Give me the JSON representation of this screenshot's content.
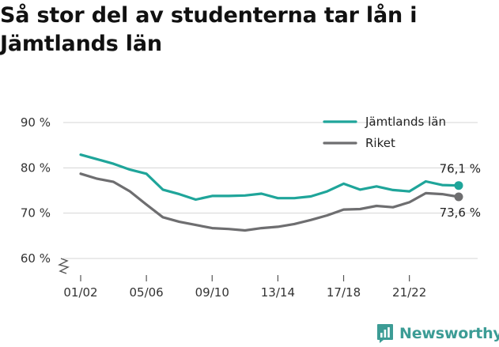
{
  "title": "Så stor del av studenterna tar lån i Jämtlands län",
  "brand": {
    "name": "Newsworthy",
    "icon": "newsworthy-chart-icon",
    "color": "#3c9c95"
  },
  "chart_data": {
    "type": "line",
    "title": "Så stor del av studenterna tar lån i Jämtlands län",
    "xlabel": "",
    "ylabel": "",
    "ylim": [
      60,
      90
    ],
    "y_ticks": [
      60,
      70,
      80,
      90
    ],
    "y_tick_labels": [
      "60 %",
      "70 %",
      "80 %",
      "90 %"
    ],
    "y_axis_break": true,
    "grid": true,
    "legend_position": "top-right",
    "x": [
      "01/02",
      "02/03",
      "03/04",
      "04/05",
      "05/06",
      "06/07",
      "07/08",
      "08/09",
      "09/10",
      "10/11",
      "11/12",
      "12/13",
      "13/14",
      "14/15",
      "15/16",
      "16/17",
      "17/18",
      "18/19",
      "19/20",
      "20/21",
      "21/22",
      "22/23",
      "23/24",
      "24/25"
    ],
    "x_tick_labels": [
      "01/02",
      "05/06",
      "09/10",
      "13/14",
      "17/18",
      "21/22"
    ],
    "series": [
      {
        "name": "Jämtlands län",
        "color": "#1fa59a",
        "end_label": "76,1 %",
        "values": [
          82.9,
          81.9,
          80.9,
          79.6,
          78.7,
          75.2,
          74.2,
          73.0,
          73.8,
          73.8,
          73.9,
          74.3,
          73.3,
          73.3,
          73.7,
          74.8,
          76.5,
          75.2,
          75.9,
          75.1,
          74.8,
          77.0,
          76.2,
          76.1
        ]
      },
      {
        "name": "Riket",
        "color": "#6e6e70",
        "end_label": "73,6 %",
        "values": [
          78.7,
          77.6,
          76.9,
          74.8,
          71.9,
          69.1,
          68.1,
          67.4,
          66.7,
          66.5,
          66.2,
          66.7,
          67.0,
          67.6,
          68.5,
          69.5,
          70.8,
          70.9,
          71.6,
          71.3,
          72.4,
          74.4,
          74.2,
          73.6
        ]
      }
    ]
  }
}
